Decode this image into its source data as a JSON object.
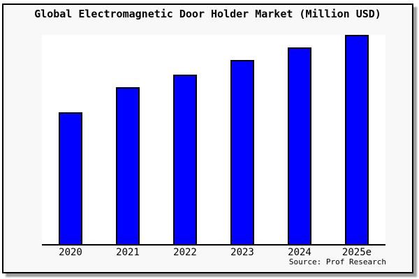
{
  "chart": {
    "title": "Global Electromagnetic Door Holder Market (Million USD)",
    "source_label": "Source: Prof Research"
  },
  "chart_data": {
    "type": "bar",
    "title": "Global Electromagnetic Door Holder Market (Million USD)",
    "categories": [
      "2020",
      "2021",
      "2022",
      "2023",
      "2024",
      "2025e"
    ],
    "values": [
      63,
      75,
      81,
      88,
      94,
      100
    ],
    "xlabel": "",
    "ylabel": "",
    "ylim": [
      0,
      100
    ],
    "units": "relative scale (no y-axis tick labels shown in figure)",
    "grid": false,
    "legend_position": "none",
    "annotations": [
      "Source: Prof Research"
    ],
    "bar_color": "#0000ff",
    "bar_border_color": "#000000",
    "plot_background": "#ffffff",
    "figure_background": "#f8f8f8"
  }
}
